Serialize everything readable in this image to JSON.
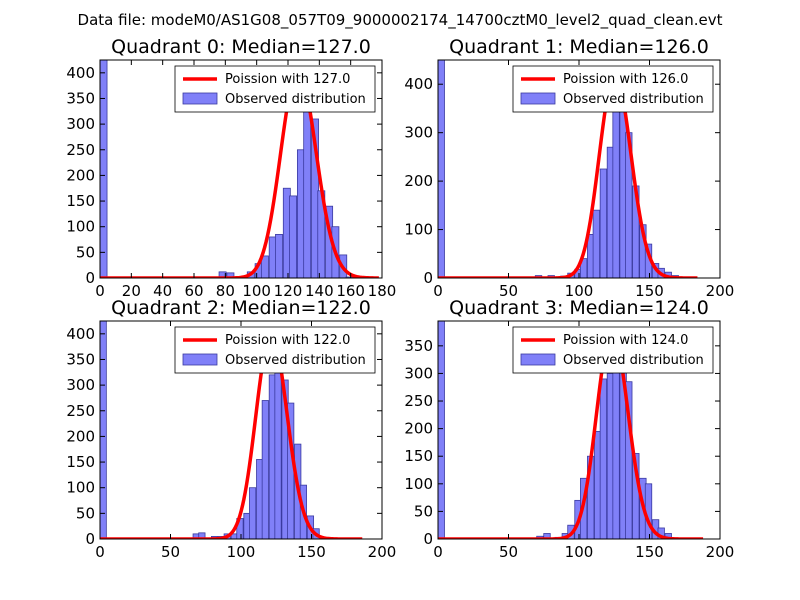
{
  "figure_title": "Data file: modeM0/AS1G08_057T09_9000002174_14700cztM0_level2_quad_clean.evt",
  "colors": {
    "bar_fill": "#8080f8",
    "bar_edge": "#3a3aa0",
    "curve": "#ff0000"
  },
  "chart_data": [
    {
      "type": "bar",
      "title": "Quadrant 0: Median=127.0",
      "xlim": [
        0,
        180
      ],
      "ylim": [
        0,
        425
      ],
      "xticks": [
        0,
        20,
        40,
        60,
        80,
        100,
        120,
        140,
        160,
        180
      ],
      "yticks": [
        0,
        50,
        100,
        150,
        200,
        250,
        300,
        350,
        400
      ],
      "bin_width": 4.5,
      "bins": [
        [
          0,
          425
        ],
        [
          68,
          2
        ],
        [
          76,
          12
        ],
        [
          81,
          10
        ],
        [
          90,
          3
        ],
        [
          94,
          12
        ],
        [
          99,
          28
        ],
        [
          103,
          43
        ],
        [
          108,
          80
        ],
        [
          112,
          85
        ],
        [
          117,
          175
        ],
        [
          121,
          160
        ],
        [
          126,
          250
        ],
        [
          130,
          340
        ],
        [
          135,
          310
        ],
        [
          139,
          170
        ],
        [
          144,
          140
        ],
        [
          148,
          100
        ],
        [
          153,
          45
        ],
        [
          157,
          2
        ]
      ],
      "legend": {
        "line_label": "Poission with 127.0",
        "bar_label": "Observed distribution"
      },
      "curve": {
        "type": "poisson",
        "mean": 127.0,
        "x_range": [
          0,
          178
        ],
        "peak": 405
      }
    },
    {
      "type": "bar",
      "title": "Quadrant 1: Median=126.0",
      "xlim": [
        0,
        200
      ],
      "ylim": [
        0,
        450
      ],
      "xticks": [
        0,
        50,
        100,
        150,
        200
      ],
      "yticks": [
        0,
        100,
        200,
        300,
        400
      ],
      "bin_width": 4.6,
      "bins": [
        [
          0,
          450
        ],
        [
          69,
          5
        ],
        [
          78,
          5
        ],
        [
          87,
          4
        ],
        [
          92,
          10
        ],
        [
          97,
          18
        ],
        [
          101,
          40
        ],
        [
          106,
          90
        ],
        [
          110,
          140
        ],
        [
          115,
          225
        ],
        [
          120,
          270
        ],
        [
          124,
          360
        ],
        [
          129,
          390
        ],
        [
          133,
          300
        ],
        [
          138,
          190
        ],
        [
          143,
          110
        ],
        [
          147,
          70
        ],
        [
          152,
          30
        ],
        [
          156,
          20
        ],
        [
          161,
          12
        ],
        [
          166,
          5
        ]
      ],
      "legend": {
        "line_label": "Poission with 126.0",
        "bar_label": "Observed distribution"
      },
      "curve": {
        "type": "poisson",
        "mean": 126.0,
        "x_range": [
          0,
          184
        ],
        "peak": 420
      }
    },
    {
      "type": "bar",
      "title": "Quadrant 2: Median=122.0",
      "xlim": [
        0,
        200
      ],
      "ylim": [
        0,
        425
      ],
      "xticks": [
        0,
        50,
        100,
        150,
        200
      ],
      "yticks": [
        0,
        50,
        100,
        150,
        200,
        250,
        300,
        350,
        400
      ],
      "bin_width": 4.5,
      "bins": [
        [
          0,
          425
        ],
        [
          66,
          10
        ],
        [
          70,
          12
        ],
        [
          79,
          5
        ],
        [
          84,
          5
        ],
        [
          88,
          10
        ],
        [
          93,
          10
        ],
        [
          97,
          40
        ],
        [
          102,
          50
        ],
        [
          106,
          100
        ],
        [
          111,
          155
        ],
        [
          115,
          270
        ],
        [
          120,
          320
        ],
        [
          124,
          385
        ],
        [
          129,
          310
        ],
        [
          133,
          265
        ],
        [
          138,
          185
        ],
        [
          142,
          105
        ],
        [
          147,
          45
        ],
        [
          151,
          20
        ],
        [
          160,
          2
        ]
      ],
      "legend": {
        "line_label": "Poission with 122.0",
        "bar_label": "Observed distribution"
      },
      "curve": {
        "type": "poisson",
        "mean": 122.0,
        "x_range": [
          0,
          186
        ],
        "peak": 400
      }
    },
    {
      "type": "bar",
      "title": "Quadrant 3: Median=124.0",
      "xlim": [
        0,
        200
      ],
      "ylim": [
        0,
        395
      ],
      "xticks": [
        0,
        50,
        100,
        150,
        200
      ],
      "yticks": [
        0,
        50,
        100,
        150,
        200,
        250,
        300,
        350
      ],
      "bin_width": 4.6,
      "bins": [
        [
          0,
          395
        ],
        [
          70,
          5
        ],
        [
          75,
          10
        ],
        [
          83,
          3
        ],
        [
          88,
          10
        ],
        [
          92,
          25
        ],
        [
          97,
          70
        ],
        [
          101,
          110
        ],
        [
          106,
          150
        ],
        [
          111,
          195
        ],
        [
          115,
          290
        ],
        [
          120,
          300
        ],
        [
          124,
          355
        ],
        [
          129,
          335
        ],
        [
          133,
          285
        ],
        [
          138,
          155
        ],
        [
          143,
          110
        ],
        [
          147,
          100
        ],
        [
          152,
          35
        ],
        [
          156,
          20
        ],
        [
          161,
          10
        ],
        [
          170,
          2
        ]
      ],
      "legend": {
        "line_label": "Poission with 124.0",
        "bar_label": "Observed distribution"
      },
      "curve": {
        "type": "poisson",
        "mean": 124.0,
        "x_range": [
          0,
          188
        ],
        "peak": 378
      }
    }
  ]
}
